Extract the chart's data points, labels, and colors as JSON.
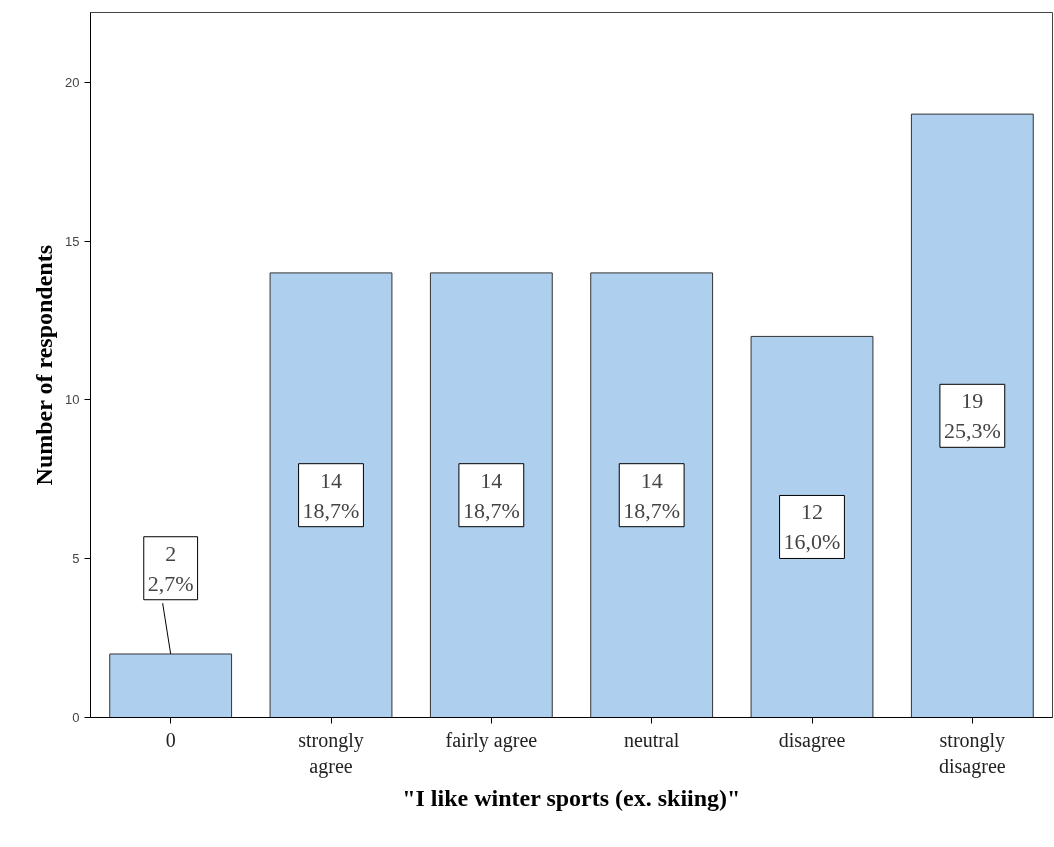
{
  "chart_data": {
    "type": "bar",
    "xlabel": "\"I like winter sports (ex. skiing)\"",
    "ylabel": "Number of respondents",
    "categories": [
      "0",
      "strongly agree",
      "fairly agree",
      "neutral",
      "disagree",
      "strongly disagree"
    ],
    "values": [
      2,
      14,
      14,
      14,
      12,
      19
    ],
    "value_labels": [
      "2\n2,7%",
      "14\n18,7%",
      "14\n18,7%",
      "14\n18,7%",
      "12\n16,0%",
      "19\n25,3%"
    ],
    "color": "#aed0ee",
    "ylim": [
      0,
      22.2
    ],
    "yticks": [
      0,
      5,
      10,
      15,
      20
    ],
    "grid": false
  }
}
